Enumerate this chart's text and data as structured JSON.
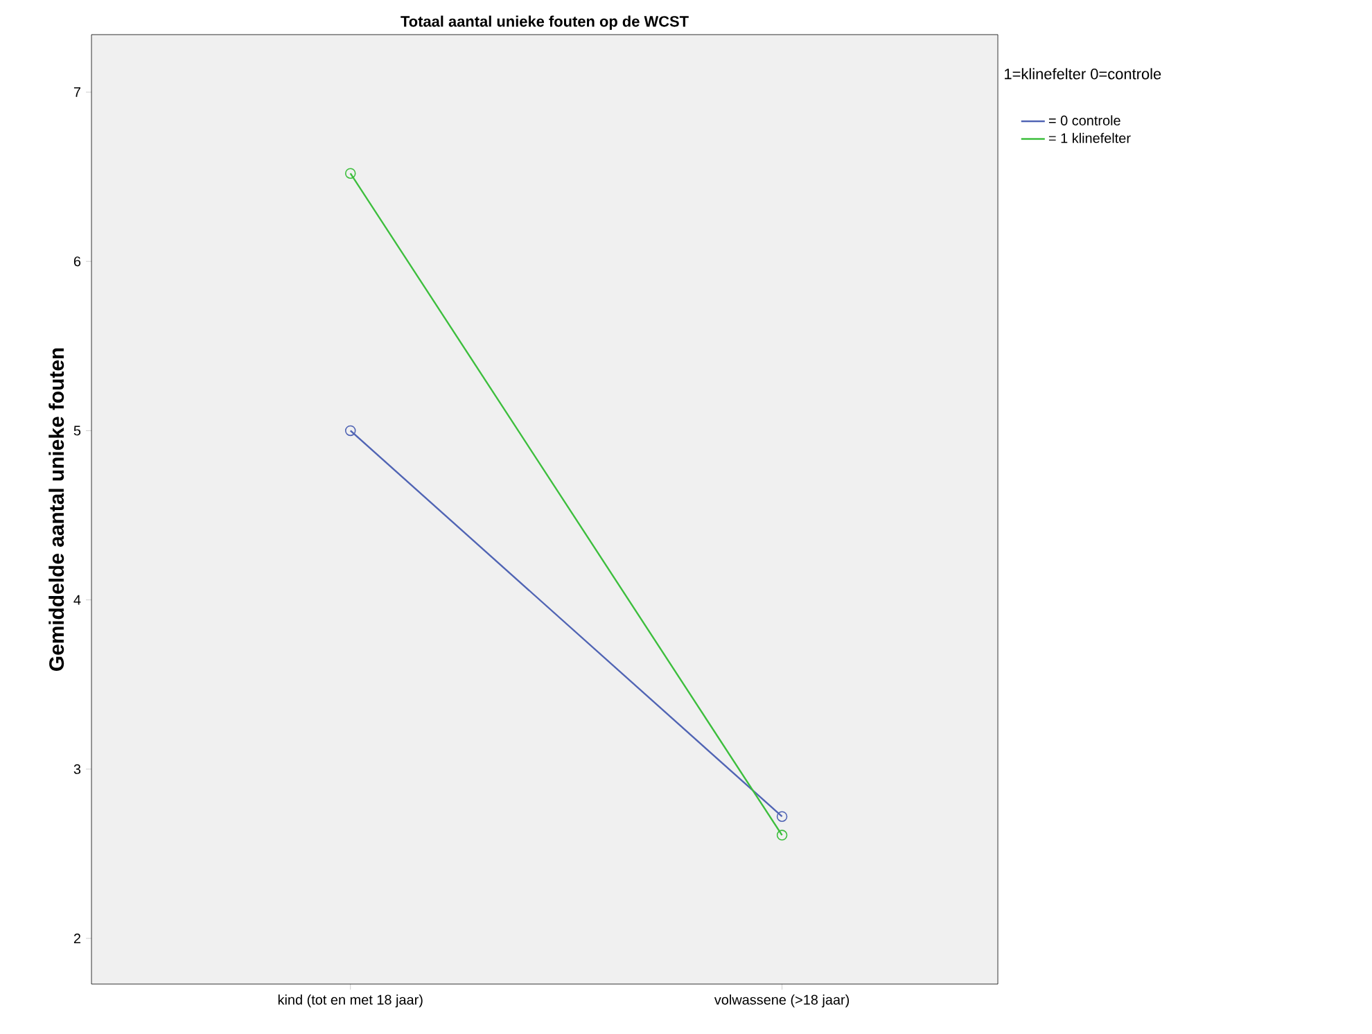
{
  "chart_data": {
    "type": "line",
    "title": "Totaal aantal unieke fouten op de WCST",
    "ylabel": "Gemiddelde aantal unieke fouten",
    "legend_title": "1=klinefelter 0=controle",
    "categories": [
      "kind (tot en met 18 jaar)",
      "volwassene (>18 jaar)"
    ],
    "series": [
      {
        "name": "= 0 controle",
        "color": "#5064b4",
        "values": [
          5.0,
          2.72
        ]
      },
      {
        "name": "= 1 klinefelter",
        "color": "#3cbe3c",
        "values": [
          6.52,
          2.61
        ]
      }
    ],
    "ylim": [
      1.73,
      7.34
    ],
    "yticks": [
      2,
      3,
      4,
      5,
      6,
      7
    ],
    "marker": "circle",
    "legend": "top right",
    "grid": false
  }
}
